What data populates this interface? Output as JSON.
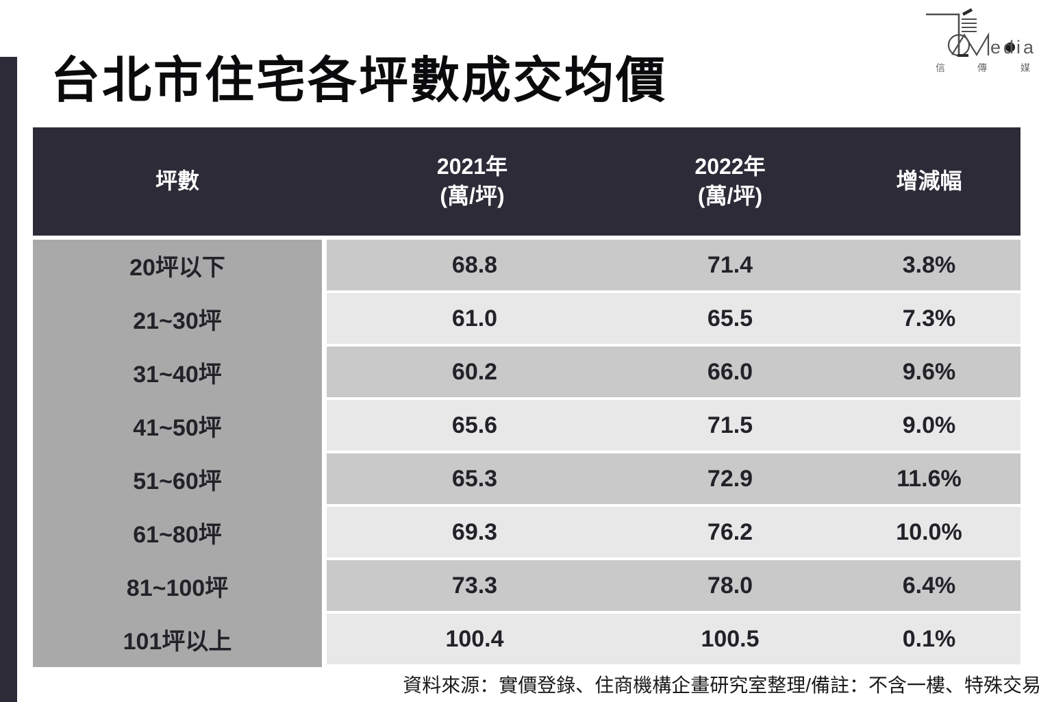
{
  "page": {
    "title": "台北市住宅各坪數成交均價",
    "source_note": "資料來源：實價登錄、住商機構企畫研究室整理/備註：不含一樓、特殊交易"
  },
  "logo": {
    "latin": "edia",
    "cjk_1": "信",
    "cjk_2": "傳",
    "cjk_3": "媒"
  },
  "colors": {
    "header_bg": "#2e2b38",
    "left_bar": "#2e2b38",
    "label_col_bg": "#a9a9a9",
    "stripe_dark": "#c9c9c9",
    "stripe_light": "#e8e8e8",
    "header_text": "#ffffff",
    "body_text": "#222228"
  },
  "chart_data": {
    "type": "table",
    "title": "台北市住宅各坪數成交均價",
    "columns": [
      {
        "label": "坪數",
        "sub": ""
      },
      {
        "label": "2021年",
        "sub": "(萬/坪)"
      },
      {
        "label": "2022年",
        "sub": "(萬/坪)"
      },
      {
        "label": "增減幅",
        "sub": ""
      }
    ],
    "rows": [
      {
        "label": "20坪以下",
        "y2021": "68.8",
        "y2022": "71.4",
        "change": "3.8%"
      },
      {
        "label": "21~30坪",
        "y2021": "61.0",
        "y2022": "65.5",
        "change": "7.3%"
      },
      {
        "label": "31~40坪",
        "y2021": "60.2",
        "y2022": "66.0",
        "change": "9.6%"
      },
      {
        "label": "41~50坪",
        "y2021": "65.6",
        "y2022": "71.5",
        "change": "9.0%"
      },
      {
        "label": "51~60坪",
        "y2021": "65.3",
        "y2022": "72.9",
        "change": "11.6%"
      },
      {
        "label": "61~80坪",
        "y2021": "69.3",
        "y2022": "76.2",
        "change": "10.0%"
      },
      {
        "label": "81~100坪",
        "y2021": "73.3",
        "y2022": "78.0",
        "change": "6.4%"
      },
      {
        "label": "101坪以上",
        "y2021": "100.4",
        "y2022": "100.5",
        "change": "0.1%"
      }
    ]
  }
}
